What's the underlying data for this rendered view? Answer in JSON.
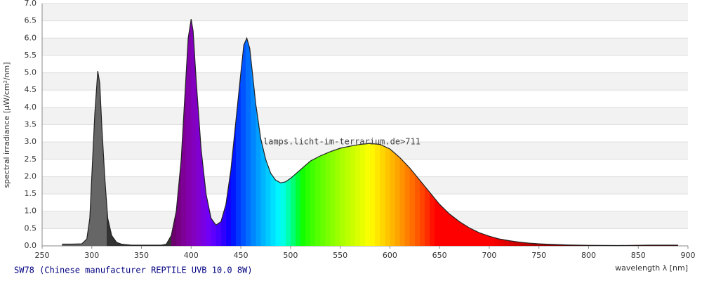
{
  "chart_data": {
    "type": "area",
    "x_label": "wavelength λ [nm]",
    "y_label": "spectral irradiance [µW/cm²/nm]",
    "caption": "SW78 (Chinese manufacturer REPTILE UVB 10.0 8W)",
    "watermark": "lamps.licht-im-terrarium.de>711",
    "x": [
      270,
      280,
      290,
      295,
      298,
      300,
      303,
      306,
      308,
      310,
      313,
      316,
      320,
      325,
      330,
      340,
      350,
      360,
      370,
      375,
      380,
      385,
      390,
      394,
      397,
      400,
      402,
      405,
      410,
      415,
      420,
      425,
      430,
      435,
      440,
      445,
      450,
      453,
      456,
      459,
      462,
      465,
      470,
      475,
      480,
      485,
      490,
      495,
      500,
      510,
      520,
      530,
      540,
      550,
      560,
      570,
      580,
      590,
      600,
      610,
      620,
      630,
      640,
      650,
      660,
      670,
      680,
      690,
      700,
      710,
      720,
      730,
      740,
      750,
      760,
      770,
      780,
      800,
      830,
      860,
      890
    ],
    "values": [
      0.05,
      0.05,
      0.06,
      0.2,
      0.8,
      2.0,
      3.8,
      5.05,
      4.7,
      3.5,
      2.0,
      0.8,
      0.3,
      0.1,
      0.05,
      0.02,
      0.02,
      0.02,
      0.02,
      0.05,
      0.3,
      1.0,
      2.5,
      4.5,
      6.0,
      6.55,
      6.2,
      4.8,
      2.8,
      1.5,
      0.8,
      0.6,
      0.7,
      1.2,
      2.2,
      3.6,
      5.0,
      5.8,
      6.0,
      5.7,
      4.9,
      4.1,
      3.1,
      2.5,
      2.1,
      1.9,
      1.82,
      1.85,
      1.95,
      2.2,
      2.45,
      2.6,
      2.72,
      2.82,
      2.88,
      2.93,
      2.96,
      2.93,
      2.8,
      2.55,
      2.25,
      1.9,
      1.55,
      1.2,
      0.92,
      0.7,
      0.52,
      0.38,
      0.28,
      0.2,
      0.15,
      0.11,
      0.08,
      0.06,
      0.045,
      0.035,
      0.025,
      0.015,
      0.01,
      0.02,
      0.02
    ],
    "xlim": [
      250,
      900
    ],
    "xticks": [
      250,
      300,
      350,
      400,
      450,
      500,
      550,
      600,
      650,
      700,
      750,
      800,
      850,
      900
    ],
    "ylim": [
      0,
      7
    ],
    "yticks": [
      {
        "value": 0,
        "label": "0.0"
      },
      0.5,
      {
        "value": 1,
        "label": "1.0"
      },
      1.5,
      {
        "value": 2,
        "label": "2.0"
      },
      2.5,
      {
        "value": 3,
        "label": "3.0"
      },
      3.5,
      {
        "value": 4,
        "label": "4.0"
      },
      4.5,
      {
        "value": 5,
        "label": "5.0"
      },
      5.5,
      {
        "value": 6,
        "label": "6.0"
      },
      6.5,
      {
        "value": 7,
        "label": "7.0"
      }
    ],
    "grid": true,
    "color": "spectral"
  }
}
